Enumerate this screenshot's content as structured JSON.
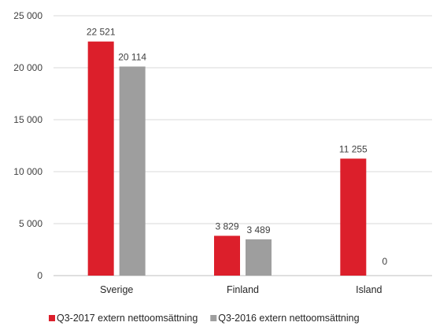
{
  "chart_data": {
    "type": "bar",
    "categories": [
      "Sverige",
      "Finland",
      "Island"
    ],
    "series": [
      {
        "name": "Q3-2017 extern nettoomsättning",
        "values": [
          22521,
          3829,
          11255
        ],
        "labels": [
          "22 521",
          "3 829",
          "11 255"
        ],
        "color": "#dc1f2b"
      },
      {
        "name": "Q3-2016 extern nettoomsättning",
        "values": [
          20114,
          3489,
          0
        ],
        "labels": [
          "20 114",
          "3 489",
          "0"
        ],
        "color": "#9e9e9e"
      }
    ],
    "yticks": [
      0,
      5000,
      10000,
      15000,
      20000,
      25000
    ],
    "ytick_labels": [
      "0",
      "5 000",
      "10 000",
      "15 000",
      "20 000",
      "25 000"
    ],
    "ylim": [
      0,
      25000
    ],
    "grid": true,
    "legend": "bottom"
  }
}
